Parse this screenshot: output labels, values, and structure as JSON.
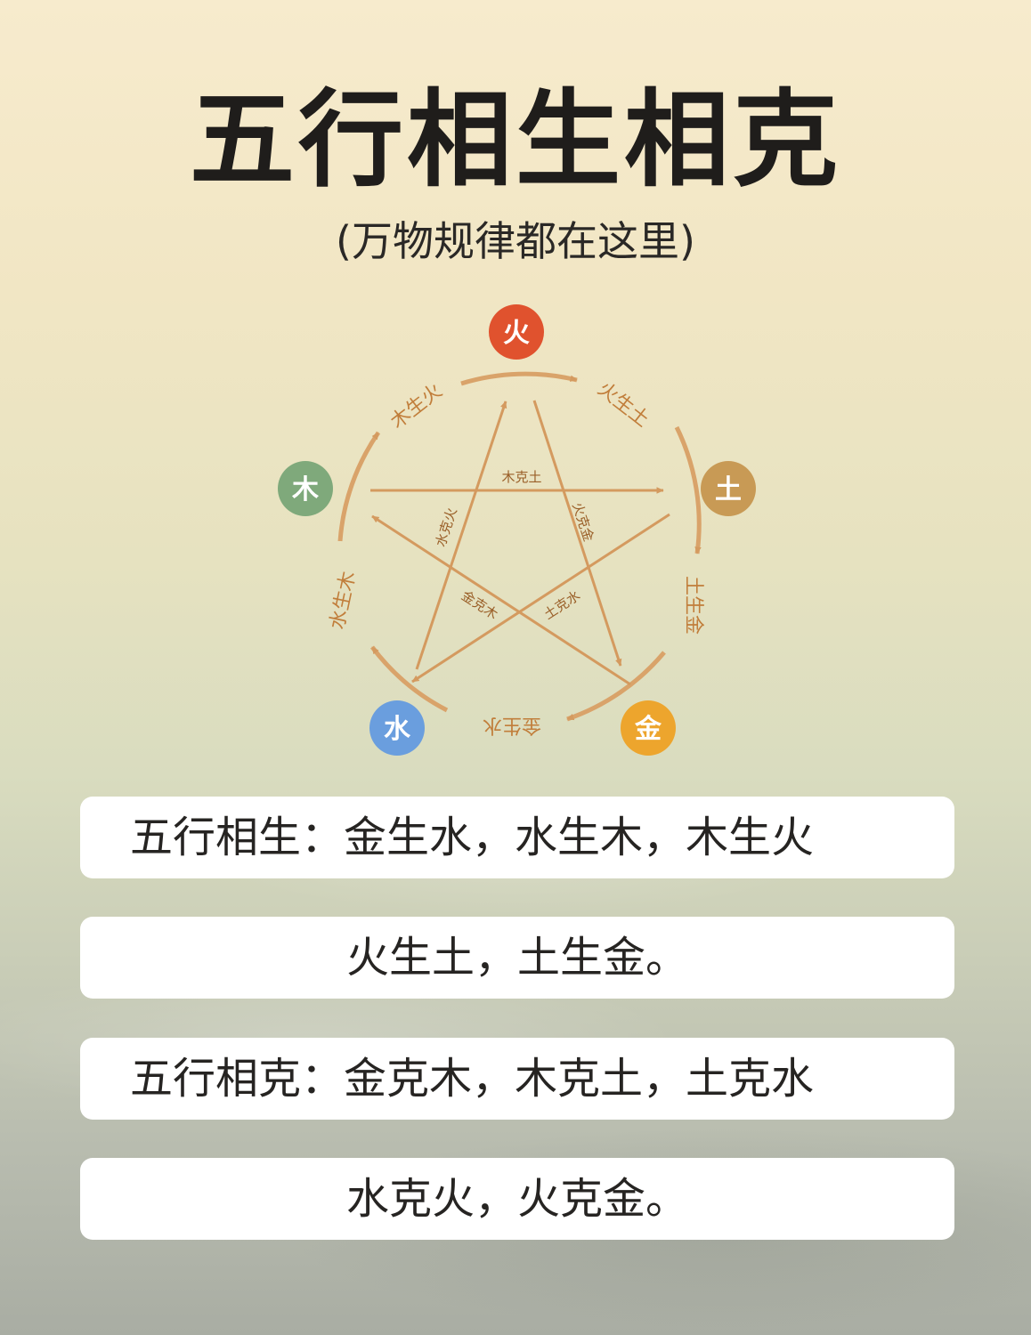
{
  "title": "五行相生相克",
  "subtitle": "(万物规律都在这里)",
  "elements": {
    "fire": {
      "glyph": "火",
      "color": "#e0522e"
    },
    "earth": {
      "glyph": "土",
      "color": "#c89a55"
    },
    "metal": {
      "glyph": "金",
      "color": "#eda52d"
    },
    "water": {
      "glyph": "水",
      "color": "#6a9ede"
    },
    "wood": {
      "glyph": "木",
      "color": "#7fa97b"
    }
  },
  "cycle_labels": {
    "wood_fire": "木生火",
    "fire_earth": "火生土",
    "earth_metal": "土生金",
    "metal_water": "金生水",
    "water_wood": "水生木"
  },
  "overcome_labels": {
    "wood_earth": "木克土",
    "fire_metal": "火克金",
    "water_fire": "水克火",
    "metal_wood": "金克木",
    "earth_water": "土克水"
  },
  "line_color": "#d9a36a",
  "cards": [
    "五行相生：金生水，水生木，木生火",
    "火生土，土生金。",
    "五行相克：金克木，木克土，土克水",
    "水克火，火克金。"
  ]
}
